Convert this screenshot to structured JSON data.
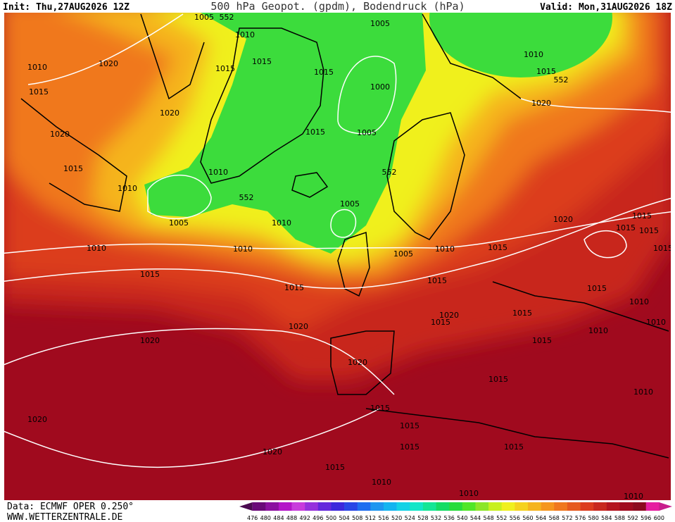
{
  "header": {
    "init": "Init: Thu,27AUG2026 12Z",
    "title": "500 hPa Geopot. (gpdm), Bodendruck (hPa)",
    "valid": "Valid: Mon,31AUG2026 18Z"
  },
  "footer": {
    "data": "Data: ECMWF OPER 0.250°",
    "site": "WWW.WETTERZENTRALE.DE"
  },
  "isobar_labels": [
    "1005",
    "552",
    "1010",
    "1005",
    "1010",
    "1015",
    "552",
    "1010",
    "1020",
    "1015",
    "1015",
    "1015",
    "1000",
    "1015",
    "1020",
    "1020",
    "1020",
    "1015",
    "1005",
    "1015",
    "1010",
    "552",
    "1010",
    "552",
    "1005",
    "1005",
    "1010",
    "1020",
    "1015",
    "1015",
    "1015",
    "1010",
    "1010",
    "1005",
    "1010",
    "1015",
    "1015",
    "1015",
    "1015",
    "1015",
    "1015",
    "1010",
    "1020",
    "1015",
    "1015",
    "1010",
    "1020",
    "1010",
    "1020",
    "1015",
    "1020",
    "1015",
    "1010",
    "1015",
    "1020",
    "1015",
    "1015",
    "1015",
    "1020",
    "1015",
    "1010",
    "1010",
    "1010"
  ],
  "colorbar": {
    "levels": [
      476,
      480,
      484,
      488,
      492,
      496,
      500,
      504,
      508,
      512,
      516,
      520,
      524,
      528,
      532,
      536,
      540,
      544,
      548,
      552,
      556,
      560,
      564,
      568,
      572,
      576,
      580,
      584,
      588,
      592,
      596,
      600
    ],
    "colors": [
      "#4b0a50",
      "#6a0a78",
      "#8c10a0",
      "#b414c8",
      "#c83cdc",
      "#9632dc",
      "#6428dc",
      "#3c28dc",
      "#2846e6",
      "#1e6ef0",
      "#1e96f0",
      "#14b4f0",
      "#14d2e6",
      "#14e6c8",
      "#14e696",
      "#14dc64",
      "#28dc3c",
      "#50e628",
      "#8ce628",
      "#c8f01e",
      "#f0f01e",
      "#f5d21e",
      "#f5b41e",
      "#f5961e",
      "#f0781e",
      "#e65a1e",
      "#dc3c1e",
      "#c8281e",
      "#b4141e",
      "#a00a1e",
      "#8c0a1e",
      "#e61ea0",
      "#c81e8c"
    ]
  }
}
